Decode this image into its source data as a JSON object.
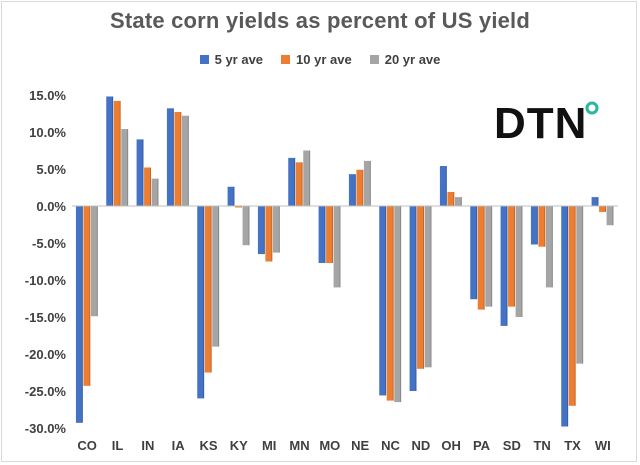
{
  "chart_data": {
    "type": "bar",
    "title": "State corn yields as percent of US yield",
    "categories": [
      "CO",
      "IL",
      "IN",
      "IA",
      "KS",
      "KY",
      "MI",
      "MN",
      "MO",
      "NE",
      "NC",
      "ND",
      "OH",
      "PA",
      "SD",
      "TN",
      "TX",
      "WI"
    ],
    "series": [
      {
        "name": "5 yr ave",
        "color": "#4472c4",
        "values": [
          -29.3,
          14.8,
          9.0,
          13.2,
          -26.0,
          2.6,
          -6.5,
          6.5,
          -7.7,
          4.3,
          -25.6,
          -25.0,
          5.4,
          -12.6,
          -16.2,
          -5.2,
          -29.8,
          1.2
        ]
      },
      {
        "name": "10 yr ave",
        "color": "#ed7d31",
        "values": [
          -24.3,
          14.2,
          5.2,
          12.7,
          -22.5,
          -0.2,
          -7.5,
          5.9,
          -7.7,
          4.9,
          -26.3,
          -22.0,
          1.9,
          -14.0,
          -13.6,
          -5.5,
          -27.0,
          -0.8
        ]
      },
      {
        "name": "20 yr ave",
        "color": "#a5a5a5",
        "values": [
          -14.9,
          10.4,
          3.7,
          12.2,
          -19.0,
          -5.3,
          -6.3,
          7.5,
          -11.0,
          6.1,
          -26.5,
          -21.8,
          1.2,
          -13.6,
          -15.0,
          -11.0,
          -21.3,
          -2.6
        ]
      }
    ],
    "y_ticks": [
      "15.0%",
      "10.0%",
      "5.0%",
      "0.0%",
      "-5.0%",
      "-10.0%",
      "-15.0%",
      "-20.0%",
      "-25.0%",
      "-30.0%"
    ],
    "ylim": [
      -30,
      15
    ],
    "xlabel": "",
    "ylabel": "",
    "grid": false,
    "legend_position": "top",
    "logo": {
      "text": "DTN",
      "dot_color": "#2bb5a2"
    }
  }
}
